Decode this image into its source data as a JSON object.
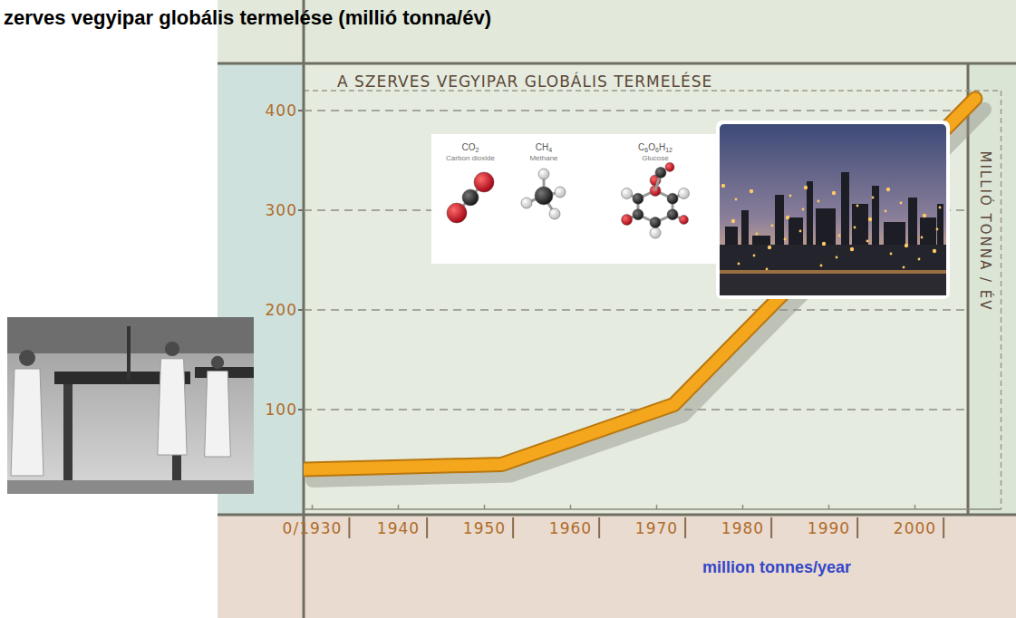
{
  "title": "zerves vegyipar globális termelése (millió tonna/év)",
  "molecules": [
    {
      "formula": "CO2",
      "name": "Carbon dioxide"
    },
    {
      "formula": "CH4",
      "name": "Methane"
    },
    {
      "formula": "C6O6H12",
      "name": "Glucose"
    }
  ],
  "chart_data": {
    "type": "line",
    "title": "A SZERVES VEGYIPAR GLOBÁLIS TERMELÉSE",
    "y_label": "MILLIÓ TONNA / ÉV",
    "caption": "million tonnes/year",
    "x": [
      1929,
      1952,
      1972,
      2007
    ],
    "values": [
      40,
      45,
      105,
      412
    ],
    "color": "#f4a61c",
    "xlim": [
      1929,
      2010
    ],
    "ylim": [
      0,
      420
    ],
    "xticks": [
      {
        "value": 1930,
        "label": "0/1930"
      },
      1940,
      1950,
      1960,
      1970,
      1980,
      1990,
      2000
    ],
    "yticks": [
      100,
      200,
      300,
      400
    ],
    "grid": true
  }
}
